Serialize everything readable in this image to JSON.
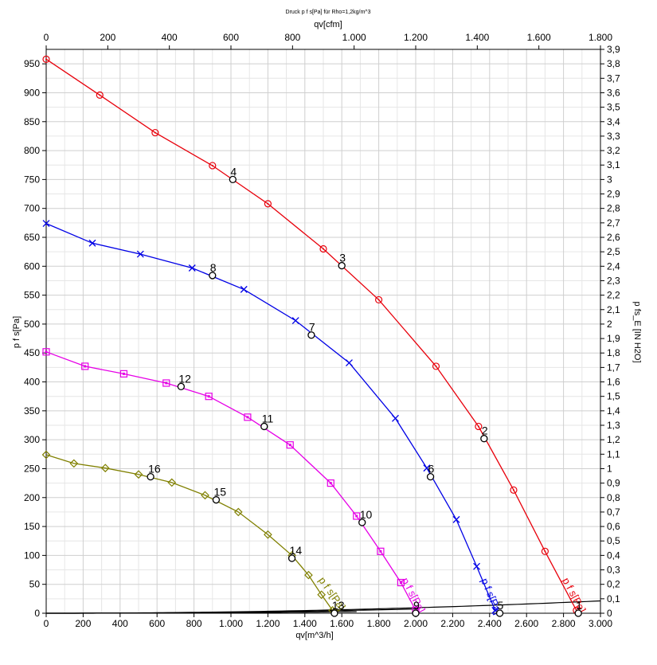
{
  "chart_data": {
    "type": "line",
    "title": "Druck p f s[Pa] für Rho=1,2kg/m^3",
    "xlabel": "qv[m^3/h]",
    "x2label": "qv[cfm]",
    "ylabel": "p f s[Pa]",
    "y2label": "p fs_E [IN H2O]",
    "xlim": [
      0,
      3000
    ],
    "ylim": [
      0,
      975
    ],
    "x2lim": [
      0,
      1800
    ],
    "y2lim": [
      0,
      3.9
    ],
    "xticks": [
      "0",
      "200",
      "400",
      "600",
      "800",
      "1.000",
      "1.200",
      "1.400",
      "1.600",
      "1.800",
      "2.000",
      "2.200",
      "2.400",
      "2.600",
      "2.800",
      "3.000"
    ],
    "x2ticks": [
      "0",
      "200",
      "400",
      "600",
      "800",
      "1.000",
      "1.200",
      "1.400",
      "1.600",
      "1.800"
    ],
    "yticks": [
      "0",
      "50",
      "100",
      "150",
      "200",
      "250",
      "300",
      "350",
      "400",
      "450",
      "500",
      "550",
      "600",
      "650",
      "700",
      "750",
      "800",
      "850",
      "900",
      "950"
    ],
    "y2ticks": [
      "0",
      "0,1",
      "0,2",
      "0,3",
      "0,4",
      "0,5",
      "0,6",
      "0,7",
      "0,8",
      "0,9",
      "1",
      "1,1",
      "1,2",
      "1,3",
      "1,4",
      "1,5",
      "1,6",
      "1,7",
      "1,8",
      "1,9",
      "2",
      "2,1",
      "2,2",
      "2,3",
      "2,4",
      "2,5",
      "2,6",
      "2,7",
      "2,8",
      "2,9",
      "3",
      "3,1",
      "3,2",
      "3,3",
      "3,4",
      "3,5",
      "3,6",
      "3,7",
      "3,8",
      "3,9"
    ],
    "grid": true,
    "series": [
      {
        "name": "p f s[Pa]",
        "color": "#e8000b",
        "marker": "circle",
        "x": [
          0,
          290,
          590,
          900,
          1200,
          1500,
          1800,
          2110,
          2340,
          2530,
          2700,
          2870
        ],
        "values": [
          958,
          896,
          831,
          774,
          708,
          630,
          542,
          427,
          323,
          213,
          107,
          5
        ]
      },
      {
        "name": "p f s[Pa]",
        "color": "#0000e6",
        "marker": "x",
        "x": [
          0,
          250,
          510,
          790,
          1070,
          1350,
          1640,
          1890,
          2060,
          2220,
          2330,
          2430
        ],
        "values": [
          674,
          640,
          621,
          597,
          560,
          506,
          433,
          337,
          251,
          162,
          81,
          5
        ]
      },
      {
        "name": "p f s[Pa]",
        "color": "#e600e6",
        "marker": "square",
        "x": [
          0,
          210,
          420,
          650,
          880,
          1090,
          1320,
          1540,
          1680,
          1810,
          1920,
          2000
        ],
        "values": [
          452,
          427,
          414,
          398,
          375,
          339,
          291,
          225,
          168,
          107,
          53,
          5
        ]
      },
      {
        "name": "p f s[Pa]",
        "color": "#808000",
        "marker": "diamond",
        "x": [
          0,
          150,
          320,
          500,
          680,
          860,
          1040,
          1200,
          1330,
          1420,
          1490,
          1550
        ],
        "values": [
          274,
          259,
          251,
          240,
          226,
          204,
          175,
          136,
          100,
          66,
          32,
          5
        ]
      }
    ],
    "system_curves": [
      {
        "coeffs": [
          1200,
          22500
        ],
        "x_max": 3000
      },
      {
        "coeffs": [
          1800,
          31500
        ],
        "x_max": 2020
      },
      {
        "coeffs": [
          2950,
          54700
        ],
        "x_max": 1680
      }
    ],
    "points": [
      {
        "label": "1",
        "x": 2880,
        "y": 0
      },
      {
        "label": "2",
        "x": 2370,
        "y": 302
      },
      {
        "label": "3",
        "x": 1600,
        "y": 601
      },
      {
        "label": "4",
        "x": 1010,
        "y": 750
      },
      {
        "label": "5",
        "x": 2455,
        "y": 0
      },
      {
        "label": "6",
        "x": 2080,
        "y": 236
      },
      {
        "label": "7",
        "x": 1435,
        "y": 481
      },
      {
        "label": "8",
        "x": 900,
        "y": 584
      },
      {
        "label": "9",
        "x": 2000,
        "y": 0
      },
      {
        "label": "10",
        "x": 1710,
        "y": 157
      },
      {
        "label": "11",
        "x": 1180,
        "y": 323
      },
      {
        "label": "12",
        "x": 730,
        "y": 392
      },
      {
        "label": "13",
        "x": 1560,
        "y": 0
      },
      {
        "label": "14",
        "x": 1330,
        "y": 95
      },
      {
        "label": "15",
        "x": 920,
        "y": 196
      },
      {
        "label": "16",
        "x": 565,
        "y": 236
      }
    ]
  }
}
